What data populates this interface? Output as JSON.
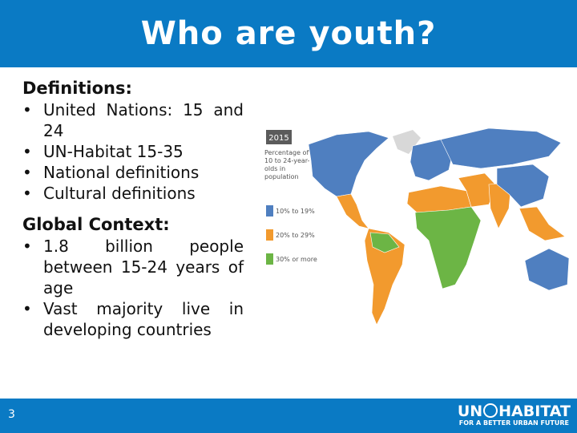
{
  "header": {
    "title": "Who are youth?"
  },
  "sections": [
    {
      "heading": "Definitions:",
      "items": [
        "United Nations: 15 and 24",
        "UN-Habitat 15-35",
        "National definitions",
        "Cultural definitions"
      ]
    },
    {
      "heading": "Global Context:",
      "items": [
        "1.8 billion people between 15-24 years of age",
        "Vast majority live in developing countries"
      ]
    }
  ],
  "map": {
    "year": "2015",
    "caption": "Percentage of 10 to 24-year-olds in population",
    "legend": [
      {
        "label": "10% to 19%",
        "color": "#4f7fc0"
      },
      {
        "label": "20% to 29%",
        "color": "#f29a2e"
      },
      {
        "label": "30% or more",
        "color": "#6cb545"
      }
    ]
  },
  "footer": {
    "page": 3,
    "logo_left": "UN",
    "logo_right": "HABITAT",
    "tagline": "FOR A BETTER URBAN FUTURE"
  }
}
